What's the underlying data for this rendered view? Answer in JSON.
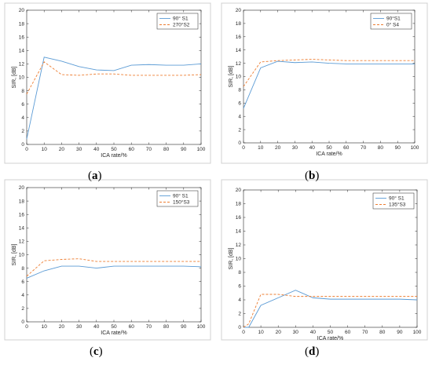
{
  "colors": {
    "s1": "#5b9bd5",
    "s2": "#ed7d31",
    "axis": "#262626",
    "border": "#d0d0d0"
  },
  "chart_data": [
    {
      "type": "line",
      "caption": "a",
      "xlabel": "ICA rate/%",
      "ylabel": "SIR, [dB]",
      "xlim": [
        0,
        100
      ],
      "ylim": [
        0,
        20
      ],
      "xticks": [
        0,
        10,
        20,
        30,
        40,
        50,
        60,
        70,
        80,
        90,
        100
      ],
      "yticks": [
        0,
        2,
        4,
        6,
        8,
        10,
        12,
        14,
        16,
        18,
        20
      ],
      "legend_position": "top-right",
      "series": [
        {
          "name": "90° S1",
          "style": "solid",
          "x": [
            0,
            10,
            20,
            30,
            40,
            50,
            60,
            70,
            80,
            90,
            100
          ],
          "y": [
            0.8,
            13.0,
            12.4,
            11.6,
            11.1,
            11.0,
            11.8,
            11.9,
            11.8,
            11.8,
            12.0
          ]
        },
        {
          "name": "270°S2",
          "style": "dashed",
          "x": [
            0,
            10,
            20,
            30,
            40,
            50,
            60,
            70,
            80,
            90,
            100
          ],
          "y": [
            7.5,
            12.3,
            10.4,
            10.3,
            10.5,
            10.5,
            10.3,
            10.3,
            10.3,
            10.3,
            10.4
          ]
        }
      ]
    },
    {
      "type": "line",
      "caption": "b",
      "xlabel": "ICA rate/%",
      "ylabel": "SIR, [dB]",
      "xlim": [
        0,
        100
      ],
      "ylim": [
        0,
        20
      ],
      "xticks": [
        0,
        10,
        20,
        30,
        40,
        50,
        60,
        70,
        80,
        90,
        100
      ],
      "yticks": [
        0,
        2,
        4,
        6,
        8,
        10,
        12,
        14,
        16,
        18,
        20
      ],
      "legend_position": "top-right",
      "series": [
        {
          "name": "90°S1",
          "style": "solid",
          "x": [
            0,
            10,
            20,
            30,
            40,
            50,
            60,
            70,
            80,
            90,
            100
          ],
          "y": [
            5.2,
            11.3,
            12.3,
            12.1,
            12.2,
            12.0,
            11.9,
            11.9,
            11.9,
            11.9,
            11.9
          ]
        },
        {
          "name": "0° S4",
          "style": "dashed",
          "x": [
            0,
            10,
            20,
            30,
            40,
            50,
            60,
            70,
            80,
            90,
            100
          ],
          "y": [
            8.5,
            12.2,
            12.4,
            12.5,
            12.6,
            12.5,
            12.4,
            12.4,
            12.4,
            12.4,
            12.4
          ]
        }
      ]
    },
    {
      "type": "line",
      "caption": "c",
      "xlabel": "ICA rate/%",
      "ylabel": "SIR, [dB]",
      "xlim": [
        0,
        100
      ],
      "ylim": [
        0,
        20
      ],
      "xticks": [
        0,
        10,
        20,
        30,
        40,
        50,
        60,
        70,
        80,
        90,
        100
      ],
      "yticks": [
        0,
        2,
        4,
        6,
        8,
        10,
        12,
        14,
        16,
        18,
        20
      ],
      "legend_position": "top-right",
      "series": [
        {
          "name": "90° S1",
          "style": "solid",
          "x": [
            0,
            10,
            20,
            30,
            40,
            50,
            60,
            70,
            80,
            90,
            100
          ],
          "y": [
            6.5,
            7.6,
            8.3,
            8.3,
            8.0,
            8.3,
            8.3,
            8.3,
            8.3,
            8.3,
            8.2
          ]
        },
        {
          "name": "150°S3",
          "style": "dashed",
          "x": [
            0,
            10,
            20,
            30,
            40,
            50,
            60,
            70,
            80,
            90,
            100
          ],
          "y": [
            6.8,
            9.1,
            9.3,
            9.4,
            9.0,
            9.0,
            9.0,
            9.0,
            9.0,
            9.0,
            9.0
          ]
        }
      ]
    },
    {
      "type": "line",
      "caption": "d",
      "xlabel": "ICA rate/%",
      "ylabel": "SIR, [dB]",
      "xlim": [
        0,
        100
      ],
      "ylim": [
        0,
        20
      ],
      "xticks": [
        0,
        10,
        20,
        30,
        40,
        50,
        60,
        70,
        80,
        90,
        100
      ],
      "yticks": [
        0,
        2,
        4,
        6,
        8,
        10,
        12,
        14,
        16,
        18,
        20
      ],
      "legend_position": "top-right",
      "series": [
        {
          "name": "90° S1",
          "style": "solid",
          "x": [
            0,
            3,
            10,
            20,
            30,
            40,
            50,
            60,
            70,
            80,
            90,
            100
          ],
          "y": [
            0,
            0,
            3.2,
            4.3,
            5.4,
            4.3,
            4.1,
            4.1,
            4.1,
            4.1,
            4.1,
            4.0
          ]
        },
        {
          "name": "135°S3",
          "style": "dashed",
          "x": [
            0,
            3,
            10,
            20,
            30,
            40,
            50,
            60,
            70,
            80,
            90,
            100
          ],
          "y": [
            0,
            0.5,
            4.8,
            4.8,
            4.5,
            4.5,
            4.5,
            4.5,
            4.5,
            4.5,
            4.5,
            4.5
          ]
        }
      ]
    }
  ]
}
